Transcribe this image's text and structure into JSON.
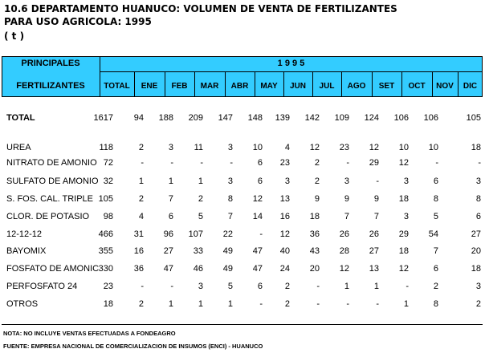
{
  "title": {
    "line1": "10.6  DEPARTAMENTO HUANUCO: VOLUMEN DE VENTA DE FERTILIZANTES",
    "line2": "PARA USO AGRICOLA: 1995",
    "line3": "( t )"
  },
  "header": {
    "principales": "PRINCIPALES",
    "fertilizantes": "FERTILIZANTES",
    "year": "1 9 9 5",
    "columns": [
      "TOTAL",
      "ENE",
      "FEB",
      "MAR",
      "ABR",
      "MAY",
      "JUN",
      "JUL",
      "AGO",
      "SET",
      "OCT",
      "NOV",
      "DIC"
    ]
  },
  "rows": [
    {
      "label": "TOTAL",
      "values": [
        "1617",
        "94",
        "188",
        "209",
        "147",
        "148",
        "139",
        "142",
        "109",
        "124",
        "106",
        "106",
        "105"
      ]
    },
    {
      "label": "UREA",
      "values": [
        "118",
        "2",
        "3",
        "11",
        "3",
        "10",
        "4",
        "12",
        "23",
        "12",
        "10",
        "10",
        "18"
      ]
    },
    {
      "label": "NITRATO DE AMONIO",
      "values": [
        "72",
        "-",
        "-",
        "-",
        "-",
        "6",
        "23",
        "2",
        "-",
        "29",
        "12",
        "-",
        "-"
      ]
    },
    {
      "label": "SULFATO DE AMONIO",
      "values": [
        "32",
        "1",
        "1",
        "1",
        "3",
        "6",
        "3",
        "2",
        "3",
        "-",
        "3",
        "6",
        "3"
      ]
    },
    {
      "label": "S. FOS. CAL. TRIPLE",
      "values": [
        "105",
        "2",
        "7",
        "2",
        "8",
        "12",
        "13",
        "9",
        "9",
        "9",
        "18",
        "8",
        "8"
      ]
    },
    {
      "label": "CLOR. DE POTASIO",
      "values": [
        "98",
        "4",
        "6",
        "5",
        "7",
        "14",
        "16",
        "18",
        "7",
        "7",
        "3",
        "5",
        "6"
      ]
    },
    {
      "label": "12-12-12",
      "values": [
        "466",
        "31",
        "96",
        "107",
        "22",
        "-",
        "12",
        "36",
        "26",
        "26",
        "29",
        "54",
        "27"
      ]
    },
    {
      "label": "BAYOMIX",
      "values": [
        "355",
        "16",
        "27",
        "33",
        "49",
        "47",
        "40",
        "43",
        "28",
        "27",
        "18",
        "7",
        "20"
      ]
    },
    {
      "label": "FOSFATO DE AMONIC",
      "values": [
        "330",
        "36",
        "47",
        "46",
        "49",
        "47",
        "24",
        "20",
        "12",
        "13",
        "12",
        "6",
        "18"
      ]
    },
    {
      "label": "PERFOSFATO 24",
      "values": [
        "23",
        "-",
        "-",
        "3",
        "5",
        "6",
        "2",
        "-",
        "1",
        "1",
        "-",
        "2",
        "3"
      ]
    },
    {
      "label": "OTROS",
      "values": [
        "18",
        "2",
        "1",
        "1",
        "1",
        "-",
        "2",
        "-",
        "-",
        "-",
        "1",
        "8",
        "2"
      ]
    }
  ],
  "notes": {
    "nota": "NOTA: NO INCLUYE VENTAS EFECTUADAS A FONDEAGRO",
    "fuente": "FUENTE: EMPRESA NACIONAL DE COMERCIALIZACION DE INSUMOS (ENCI) - HUANUCO"
  }
}
